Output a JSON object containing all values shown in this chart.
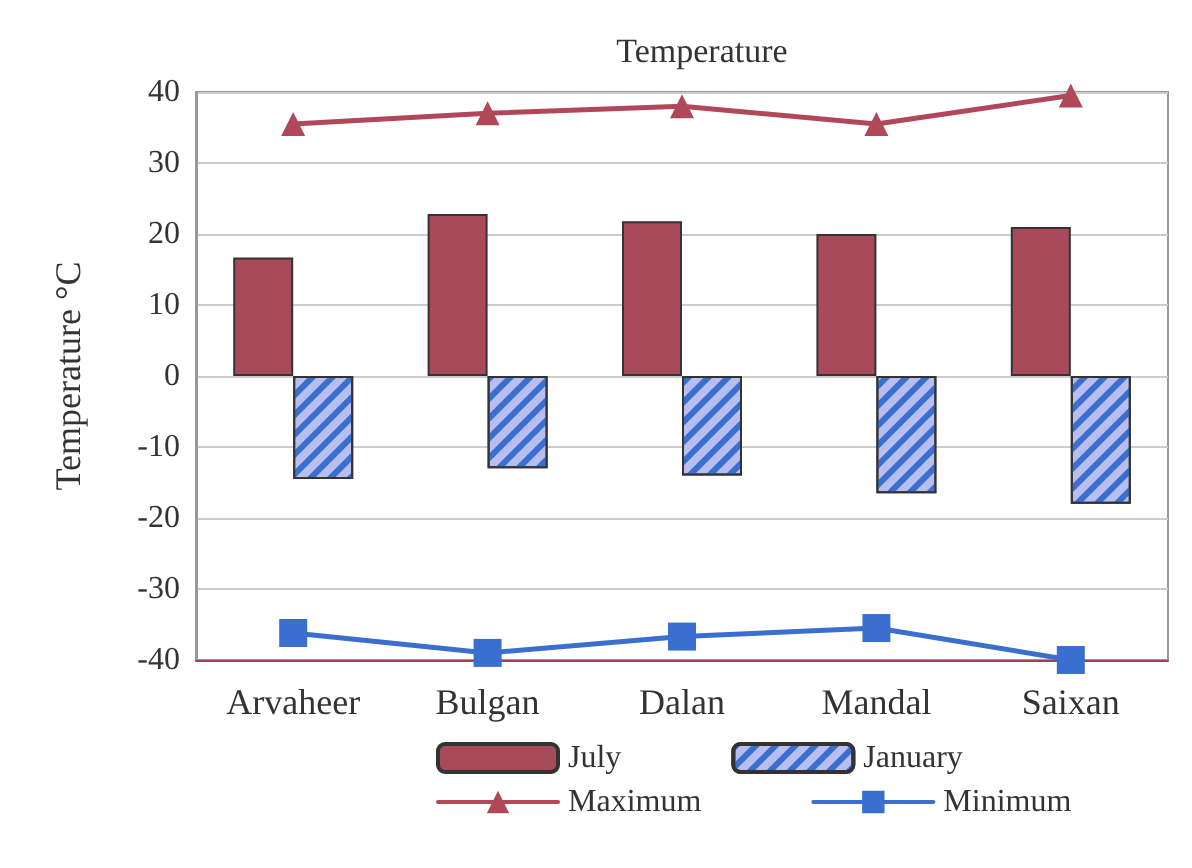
{
  "chart_data": {
    "type": "bar",
    "title": "Temperature",
    "ylabel": "Temperature °C",
    "categories": [
      "Arvaheer",
      "Bulgan",
      "Dalan",
      "Mandal",
      "Saixan"
    ],
    "series": [
      {
        "name": "July",
        "color": "#a84a5a",
        "values": [
          16.7,
          22.8,
          21.8,
          20,
          21
        ]
      },
      {
        "name": "January",
        "color": "#b8bff0",
        "values": [
          -14.5,
          -13,
          -14,
          -16.5,
          -18
        ]
      },
      {
        "name": "Maximum",
        "type": "line",
        "color": "#b0485a",
        "marker": "triangle",
        "values": [
          35.5,
          37,
          38,
          35.5,
          39.5
        ]
      },
      {
        "name": "Minimum",
        "type": "line",
        "color": "#3a6fd0",
        "marker": "square",
        "values": [
          -36.2,
          -39,
          -36.7,
          -35.5,
          -40
        ]
      }
    ],
    "ylim": [
      -40,
      40
    ],
    "yticks": [
      -40,
      -30,
      -20,
      -10,
      0,
      10,
      20,
      30,
      40
    ],
    "grid": "y",
    "legend": "bottom"
  }
}
